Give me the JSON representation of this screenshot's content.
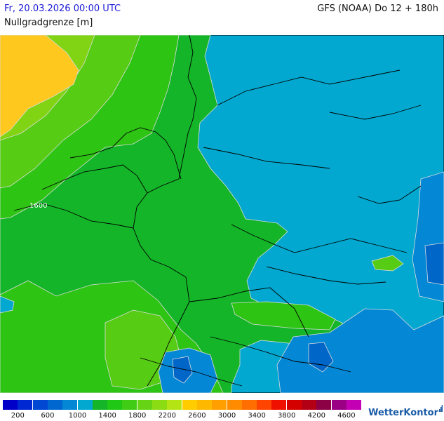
{
  "header": {
    "date": "Fr, 20.03.2026 00:00 UTC",
    "parameter": "Nullgradgrenze [m]",
    "model_run": "GFS (NOAA) Do 12 + 180h"
  },
  "map": {
    "contour_label": "1600",
    "colors": {
      "band_1000_1200": "#02a8cf",
      "band_1200_1400": "#14b528",
      "band_1400_1600": "#2ec414",
      "band_1600_1800": "#57cc14",
      "band_1800_2000": "#80d414",
      "band_2200_plus": "#ffc81e",
      "band_600_800": "#0066c8",
      "band_800_1000": "#0488d6"
    }
  },
  "legend": {
    "colors": [
      "#0000c8",
      "#0028d2",
      "#0048d2",
      "#0066d0",
      "#0488d6",
      "#02a8cf",
      "#14b528",
      "#1ec814",
      "#40cc14",
      "#66d414",
      "#8cdc14",
      "#b4e414",
      "#ffcc00",
      "#ffb800",
      "#ffa000",
      "#ff8c00",
      "#ff6e00",
      "#ff4400",
      "#f01000",
      "#d40000",
      "#b40014",
      "#8c0046",
      "#9b0084",
      "#c400b4"
    ],
    "labels": [
      "200",
      "600",
      "1000",
      "1400",
      "1800",
      "2200",
      "2600",
      "3000",
      "3400",
      "3800",
      "4200",
      "4600"
    ]
  },
  "brand": {
    "name": "WetterKontor"
  }
}
